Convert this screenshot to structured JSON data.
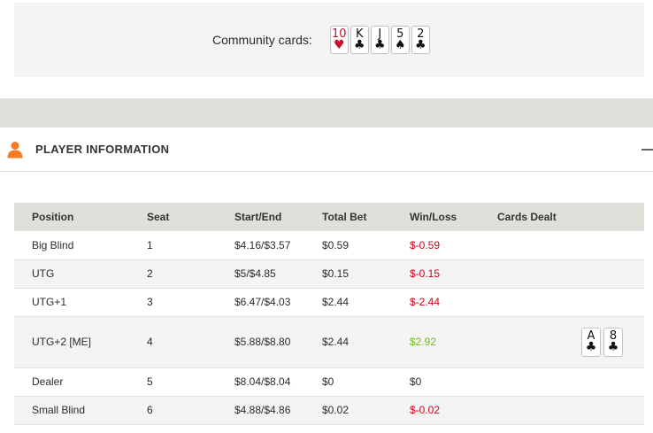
{
  "community": {
    "label": "Community cards:",
    "cards": [
      {
        "rank": "10",
        "suit": "♥",
        "color": "red"
      },
      {
        "rank": "K",
        "suit": "♣",
        "color": "black"
      },
      {
        "rank": "J",
        "suit": "♣",
        "color": "black"
      },
      {
        "rank": "5",
        "suit": "♠",
        "color": "black"
      },
      {
        "rank": "2",
        "suit": "♣",
        "color": "black"
      }
    ]
  },
  "section": {
    "title": "PLAYER INFORMATION",
    "icon": "person-icon",
    "collapse_icon": "minus-icon",
    "accent_color": "#f47b20"
  },
  "table": {
    "headers": [
      "Position",
      "Seat",
      "Start/End",
      "Total Bet",
      "Win/Loss",
      "Cards Dealt"
    ],
    "rows": [
      {
        "position": "Big Blind",
        "seat": "1",
        "start_end": "$4.16/$3.57",
        "total_bet": "$0.59",
        "win_loss": "$-0.59",
        "result": "loss",
        "cards": []
      },
      {
        "position": "UTG",
        "seat": "2",
        "start_end": "$5/$4.85",
        "total_bet": "$0.15",
        "win_loss": "$-0.15",
        "result": "loss",
        "cards": []
      },
      {
        "position": "UTG+1",
        "seat": "3",
        "start_end": "$6.47/$4.03",
        "total_bet": "$2.44",
        "win_loss": "$-2.44",
        "result": "loss",
        "cards": []
      },
      {
        "position": "UTG+2 [ME]",
        "seat": "4",
        "start_end": "$5.88/$8.80",
        "total_bet": "$2.44",
        "win_loss": "$2.92",
        "result": "win",
        "cards": [
          {
            "rank": "A",
            "suit": "♣",
            "color": "black"
          },
          {
            "rank": "8",
            "suit": "♣",
            "color": "black"
          }
        ]
      },
      {
        "position": "Dealer",
        "seat": "5",
        "start_end": "$8.04/$8.04",
        "total_bet": "$0",
        "win_loss": "$0",
        "result": "neutral",
        "cards": []
      },
      {
        "position": "Small Blind",
        "seat": "6",
        "start_end": "$4.88/$4.86",
        "total_bet": "$0.02",
        "win_loss": "$-0.02",
        "result": "loss",
        "cards": []
      }
    ]
  },
  "colors": {
    "loss": "#d0021b",
    "win": "#6fbe1e",
    "header_bg": "#e0dfda",
    "panel_bg": "#f4f4f4"
  }
}
